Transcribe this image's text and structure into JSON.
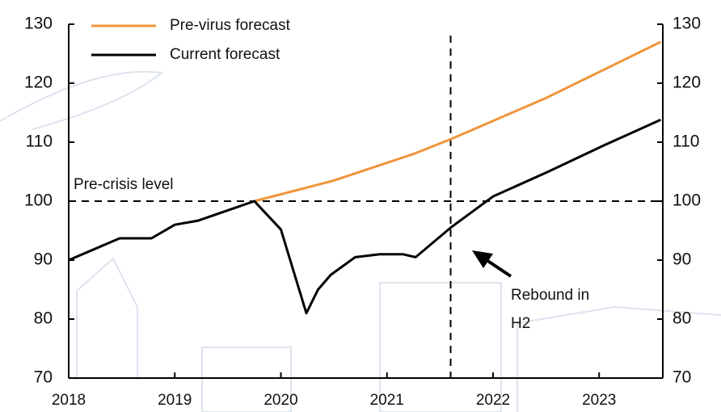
{
  "chart_data": {
    "type": "line",
    "series": [
      {
        "name": "Pre-virus forecast",
        "color": "#f0953a",
        "x": [
          2019.75,
          2020.5,
          2021.25,
          2021.6,
          2022.5,
          2023.58
        ],
        "values": [
          100,
          103.5,
          108,
          110.5,
          117.5,
          127
        ]
      },
      {
        "name": "Current forecast",
        "color": "#000000",
        "x": [
          2018,
          2018.48,
          2018.78,
          2019,
          2019.22,
          2019.75,
          2020,
          2020.24,
          2020.35,
          2020.47,
          2020.7,
          2020.93,
          2021.15,
          2021.27,
          2021.6,
          2022,
          2022.52,
          2023.05,
          2023.58
        ],
        "values": [
          90,
          93.7,
          93.7,
          96,
          96.7,
          100,
          95.2,
          81,
          85,
          87.5,
          90.5,
          91,
          91,
          90.5,
          95.5,
          100.8,
          105,
          109.5,
          113.8
        ]
      }
    ],
    "xlim": [
      2018,
      2023.6
    ],
    "xticks": [
      2018,
      2019,
      2020,
      2021,
      2022,
      2023
    ],
    "ylim": [
      70,
      130
    ],
    "yticks": [
      70,
      80,
      90,
      100,
      110,
      120,
      130
    ],
    "y2lim": [
      70,
      130
    ],
    "y2ticks": [
      70,
      80,
      90,
      100,
      110,
      120,
      130
    ],
    "reference_y": 100,
    "reference_x": 2021.6,
    "annotations": {
      "reference_label": "Pre-crisis level",
      "rebound": [
        "Rebound in",
        "H2"
      ]
    },
    "legend": "upper left"
  }
}
